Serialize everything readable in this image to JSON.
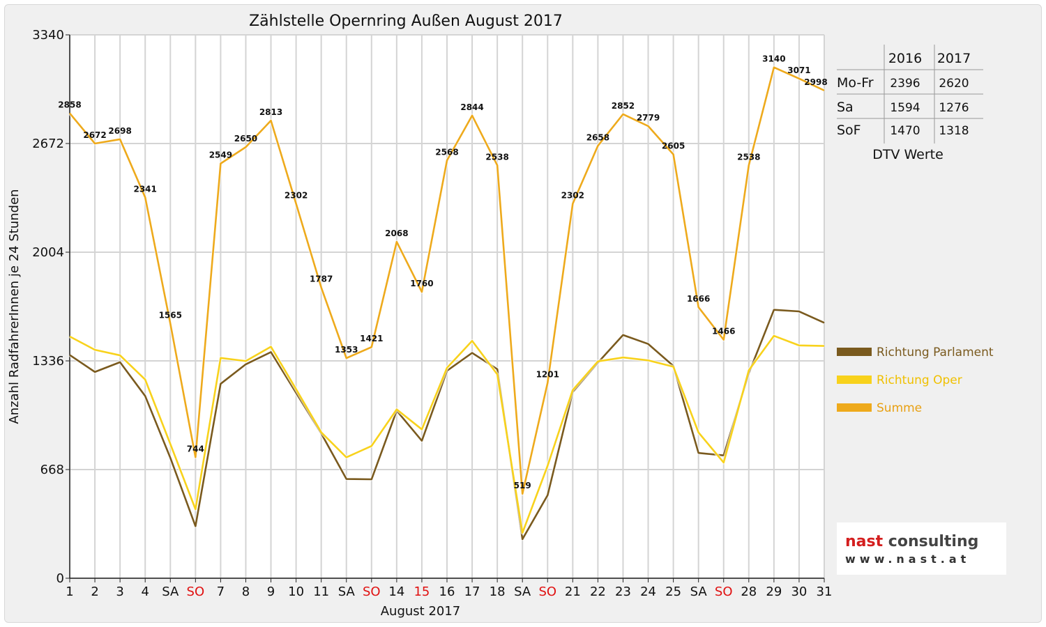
{
  "colors": {
    "parlament": "#7a5a1e",
    "oper": "#f8d21c",
    "summe": "#eeaa1c",
    "grid": "#d4d4d4",
    "plot_bg": "#ffffff",
    "weekend_red": "#e01010",
    "logo_red": "#d41e1e",
    "logo_dark": "#444444"
  },
  "chart_data": {
    "type": "line",
    "title": "Zählstelle Opernring Außen August 2017",
    "xlabel": "August 2017",
    "ylabel": "Anzahl RadfahrerInnen je 24 Stunden",
    "ylim": [
      0,
      3340
    ],
    "yticks": [
      "0",
      "668",
      "1336",
      "2004",
      "2672",
      "3340"
    ],
    "ytick_values": [
      0,
      668,
      1336,
      2004,
      2672,
      3340
    ],
    "grid": true,
    "legend_position": "right",
    "categories": [
      "1",
      "2",
      "3",
      "4",
      "SA",
      "SO",
      "7",
      "8",
      "9",
      "10",
      "11",
      "SA",
      "SO",
      "14",
      "15",
      "16",
      "17",
      "18",
      "SA",
      "SO",
      "21",
      "22",
      "23",
      "24",
      "25",
      "SA",
      "SO",
      "28",
      "29",
      "30",
      "31"
    ],
    "red_categories": [
      5,
      12,
      14,
      19,
      26
    ],
    "series": [
      {
        "name": "Richtung Parlament",
        "color_key": "parlament",
        "values": [
          1372,
          1268,
          1328,
          1120,
          740,
          320,
          1195,
          1315,
          1390,
          1140,
          890,
          610,
          608,
          1030,
          845,
          1275,
          1385,
          1285,
          240,
          510,
          1145,
          1325,
          1495,
          1440,
          1305,
          770,
          755,
          1260,
          1650,
          1640,
          1570
        ]
      },
      {
        "name": "Richtung Oper",
        "color_key": "oper",
        "values": [
          1486,
          1404,
          1370,
          1221,
          825,
          424,
          1354,
          1335,
          1423,
          1162,
          897,
          743,
          813,
          1038,
          915,
          1293,
          1459,
          1253,
          279,
          691,
          1157,
          1333,
          1357,
          1339,
          1300,
          896,
          711,
          1278,
          1490,
          1431,
          1428
        ]
      },
      {
        "name": "Summe",
        "color_key": "summe",
        "values": [
          2858,
          2672,
          2698,
          2341,
          1565,
          744,
          2549,
          2650,
          2813,
          2302,
          1787,
          1353,
          1421,
          2068,
          1760,
          2568,
          2844,
          2538,
          519,
          1201,
          2302,
          2658,
          2852,
          2779,
          2605,
          1666,
          1466,
          2538,
          3140,
          3071,
          2998
        ]
      }
    ],
    "data_labels": [
      "2858",
      "2672",
      "2698",
      "2341",
      "1565",
      "744",
      "2549",
      "2650",
      "2813",
      "2302",
      "1787",
      "1353",
      "1421",
      "2068",
      "1760",
      "2568",
      "2844",
      "2538",
      "519",
      "1201",
      "2302",
      "2658",
      "2852",
      "2779",
      "2605",
      "1666",
      "1466",
      "2538",
      "3140",
      "3071",
      "2998"
    ]
  },
  "dtv_table": {
    "headers": [
      "",
      "2016",
      "2017"
    ],
    "rows": [
      {
        "label": "Mo-Fr",
        "v2016": "2396",
        "v2017": "2620"
      },
      {
        "label": "Sa",
        "v2016": "1594",
        "v2017": "1276"
      },
      {
        "label": "SoF",
        "v2016": "1470",
        "v2017": "1318"
      }
    ],
    "caption": "DTV Werte"
  },
  "logo": {
    "word1": "nast",
    "word2": "consulting",
    "sub": "www.nast.at"
  }
}
